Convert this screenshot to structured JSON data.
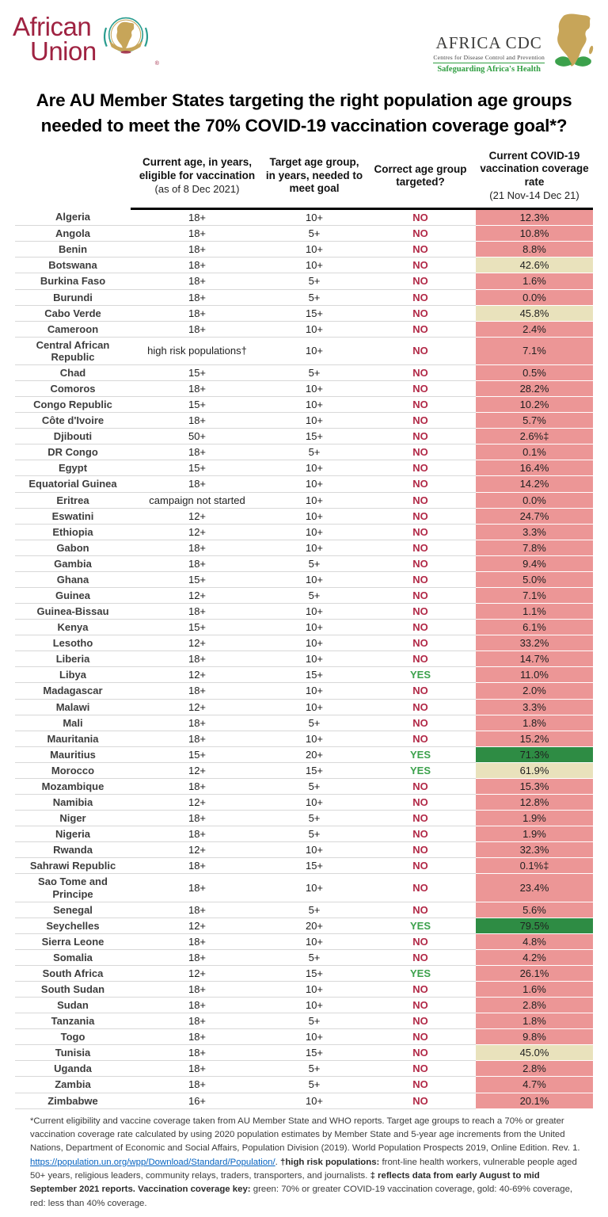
{
  "colors": {
    "band-red": "#ec9696",
    "band-gold": "#e9e2bc",
    "band-green": "#2e8c44",
    "no-red": "#b12846",
    "yes-green": "#3ca14c",
    "au-maroon": "#9f2241",
    "gold": "#c7a559",
    "cdc-green": "#2f9e41",
    "link-blue": "#0563c1"
  },
  "logos": {
    "au": {
      "line1": "African",
      "line2": "Union",
      "registered": "®"
    },
    "cdc": {
      "title": "AFRICA CDC",
      "subtitle": "Centres for Disease Control and Prevention",
      "tagline": "Safeguarding Africa's Health"
    }
  },
  "title": "Are AU Member States targeting the right population age groups needed to meet the 70% COVID-19 vaccination coverage goal*?",
  "table": {
    "headers": {
      "country": "",
      "eligible": {
        "title": "Current age, in years, eligible for vaccination",
        "sub": "(as of 8 Dec 2021)"
      },
      "target": {
        "title": "Target age group, in years, needed to meet goal",
        "sub": ""
      },
      "correct": {
        "title": "Correct age group targeted?",
        "sub": ""
      },
      "rate": {
        "title": "Current COVID-19 vaccination coverage rate",
        "sub": "(21 Nov-14 Dec 21)"
      }
    },
    "rows": [
      {
        "country": "Algeria",
        "eligible": "18+",
        "target": "10+",
        "correct": "NO",
        "rate": "12.3%",
        "band": "red"
      },
      {
        "country": "Angola",
        "eligible": "18+",
        "target": "5+",
        "correct": "NO",
        "rate": "10.8%",
        "band": "red"
      },
      {
        "country": "Benin",
        "eligible": "18+",
        "target": "10+",
        "correct": "NO",
        "rate": "8.8%",
        "band": "red"
      },
      {
        "country": "Botswana",
        "eligible": "18+",
        "target": "10+",
        "correct": "NO",
        "rate": "42.6%",
        "band": "gold"
      },
      {
        "country": "Burkina Faso",
        "eligible": "18+",
        "target": "5+",
        "correct": "NO",
        "rate": "1.6%",
        "band": "red"
      },
      {
        "country": "Burundi",
        "eligible": "18+",
        "target": "5+",
        "correct": "NO",
        "rate": "0.0%",
        "band": "red"
      },
      {
        "country": "Cabo Verde",
        "eligible": "18+",
        "target": "15+",
        "correct": "NO",
        "rate": "45.8%",
        "band": "gold"
      },
      {
        "country": "Cameroon",
        "eligible": "18+",
        "target": "10+",
        "correct": "NO",
        "rate": "2.4%",
        "band": "red"
      },
      {
        "country": "Central African Republic",
        "eligible": "high risk populations†",
        "target": "10+",
        "correct": "NO",
        "rate": "7.1%",
        "band": "red"
      },
      {
        "country": "Chad",
        "eligible": "15+",
        "target": "5+",
        "correct": "NO",
        "rate": "0.5%",
        "band": "red"
      },
      {
        "country": "Comoros",
        "eligible": "18+",
        "target": "10+",
        "correct": "NO",
        "rate": "28.2%",
        "band": "red"
      },
      {
        "country": "Congo Republic",
        "eligible": "15+",
        "target": "10+",
        "correct": "NO",
        "rate": "10.2%",
        "band": "red"
      },
      {
        "country": "Côte d'Ivoire",
        "eligible": "18+",
        "target": "10+",
        "correct": "NO",
        "rate": "5.7%",
        "band": "red"
      },
      {
        "country": "Djibouti",
        "eligible": "50+",
        "target": "15+",
        "correct": "NO",
        "rate": "2.6%‡",
        "band": "red"
      },
      {
        "country": "DR Congo",
        "eligible": "18+",
        "target": "5+",
        "correct": "NO",
        "rate": "0.1%",
        "band": "red"
      },
      {
        "country": "Egypt",
        "eligible": "15+",
        "target": "10+",
        "correct": "NO",
        "rate": "16.4%",
        "band": "red"
      },
      {
        "country": "Equatorial Guinea",
        "eligible": "18+",
        "target": "10+",
        "correct": "NO",
        "rate": "14.2%",
        "band": "red"
      },
      {
        "country": "Eritrea",
        "eligible": "campaign not started",
        "target": "10+",
        "correct": "NO",
        "rate": "0.0%",
        "band": "red"
      },
      {
        "country": "Eswatini",
        "eligible": "12+",
        "target": "10+",
        "correct": "NO",
        "rate": "24.7%",
        "band": "red"
      },
      {
        "country": "Ethiopia",
        "eligible": "12+",
        "target": "10+",
        "correct": "NO",
        "rate": "3.3%",
        "band": "red"
      },
      {
        "country": "Gabon",
        "eligible": "18+",
        "target": "10+",
        "correct": "NO",
        "rate": "7.8%",
        "band": "red"
      },
      {
        "country": "Gambia",
        "eligible": "18+",
        "target": "5+",
        "correct": "NO",
        "rate": "9.4%",
        "band": "red"
      },
      {
        "country": "Ghana",
        "eligible": "15+",
        "target": "10+",
        "correct": "NO",
        "rate": "5.0%",
        "band": "red"
      },
      {
        "country": "Guinea",
        "eligible": "12+",
        "target": "5+",
        "correct": "NO",
        "rate": "7.1%",
        "band": "red"
      },
      {
        "country": "Guinea-Bissau",
        "eligible": "18+",
        "target": "10+",
        "correct": "NO",
        "rate": "1.1%",
        "band": "red"
      },
      {
        "country": "Kenya",
        "eligible": "15+",
        "target": "10+",
        "correct": "NO",
        "rate": "6.1%",
        "band": "red"
      },
      {
        "country": "Lesotho",
        "eligible": "12+",
        "target": "10+",
        "correct": "NO",
        "rate": "33.2%",
        "band": "red"
      },
      {
        "country": "Liberia",
        "eligible": "18+",
        "target": "10+",
        "correct": "NO",
        "rate": "14.7%",
        "band": "red"
      },
      {
        "country": "Libya",
        "eligible": "12+",
        "target": "15+",
        "correct": "YES",
        "rate": "11.0%",
        "band": "red"
      },
      {
        "country": "Madagascar",
        "eligible": "18+",
        "target": "10+",
        "correct": "NO",
        "rate": "2.0%",
        "band": "red"
      },
      {
        "country": "Malawi",
        "eligible": "12+",
        "target": "10+",
        "correct": "NO",
        "rate": "3.3%",
        "band": "red"
      },
      {
        "country": "Mali",
        "eligible": "18+",
        "target": "5+",
        "correct": "NO",
        "rate": "1.8%",
        "band": "red"
      },
      {
        "country": "Mauritania",
        "eligible": "18+",
        "target": "10+",
        "correct": "NO",
        "rate": "15.2%",
        "band": "red"
      },
      {
        "country": "Mauritius",
        "eligible": "15+",
        "target": "20+",
        "correct": "YES",
        "rate": "71.3%",
        "band": "green"
      },
      {
        "country": "Morocco",
        "eligible": "12+",
        "target": "15+",
        "correct": "YES",
        "rate": "61.9%",
        "band": "gold"
      },
      {
        "country": "Mozambique",
        "eligible": "18+",
        "target": "5+",
        "correct": "NO",
        "rate": "15.3%",
        "band": "red"
      },
      {
        "country": "Namibia",
        "eligible": "12+",
        "target": "10+",
        "correct": "NO",
        "rate": "12.8%",
        "band": "red"
      },
      {
        "country": "Niger",
        "eligible": "18+",
        "target": "5+",
        "correct": "NO",
        "rate": "1.9%",
        "band": "red"
      },
      {
        "country": "Nigeria",
        "eligible": "18+",
        "target": "5+",
        "correct": "NO",
        "rate": "1.9%",
        "band": "red"
      },
      {
        "country": "Rwanda",
        "eligible": "12+",
        "target": "10+",
        "correct": "NO",
        "rate": "32.3%",
        "band": "red"
      },
      {
        "country": "Sahrawi Republic",
        "eligible": "18+",
        "target": "15+",
        "correct": "NO",
        "rate": "0.1%‡",
        "band": "red"
      },
      {
        "country": "Sao Tome and Principe",
        "eligible": "18+",
        "target": "10+",
        "correct": "NO",
        "rate": "23.4%",
        "band": "red"
      },
      {
        "country": "Senegal",
        "eligible": "18+",
        "target": "5+",
        "correct": "NO",
        "rate": "5.6%",
        "band": "red"
      },
      {
        "country": "Seychelles",
        "eligible": "12+",
        "target": "20+",
        "correct": "YES",
        "rate": "79.5%",
        "band": "green"
      },
      {
        "country": "Sierra Leone",
        "eligible": "18+",
        "target": "10+",
        "correct": "NO",
        "rate": "4.8%",
        "band": "red"
      },
      {
        "country": "Somalia",
        "eligible": "18+",
        "target": "5+",
        "correct": "NO",
        "rate": "4.2%",
        "band": "red"
      },
      {
        "country": "South Africa",
        "eligible": "12+",
        "target": "15+",
        "correct": "YES",
        "rate": "26.1%",
        "band": "red"
      },
      {
        "country": "South Sudan",
        "eligible": "18+",
        "target": "10+",
        "correct": "NO",
        "rate": "1.6%",
        "band": "red"
      },
      {
        "country": "Sudan",
        "eligible": "18+",
        "target": "10+",
        "correct": "NO",
        "rate": "2.8%",
        "band": "red"
      },
      {
        "country": "Tanzania",
        "eligible": "18+",
        "target": "5+",
        "correct": "NO",
        "rate": "1.8%",
        "band": "red"
      },
      {
        "country": "Togo",
        "eligible": "18+",
        "target": "10+",
        "correct": "NO",
        "rate": "9.8%",
        "band": "red"
      },
      {
        "country": "Tunisia",
        "eligible": "18+",
        "target": "15+",
        "correct": "NO",
        "rate": "45.0%",
        "band": "gold"
      },
      {
        "country": "Uganda",
        "eligible": "18+",
        "target": "5+",
        "correct": "NO",
        "rate": "2.8%",
        "band": "red"
      },
      {
        "country": "Zambia",
        "eligible": "18+",
        "target": "5+",
        "correct": "NO",
        "rate": "4.7%",
        "band": "red"
      },
      {
        "country": "Zimbabwe",
        "eligible": "16+",
        "target": "10+",
        "correct": "NO",
        "rate": "20.1%",
        "band": "red"
      }
    ]
  },
  "footnote": {
    "segments": [
      {
        "style": "normal",
        "text": "*Current eligibility and vaccine coverage taken from AU Member State and WHO reports. Target age groups to reach a 70% or greater vaccination coverage rate calculated by using 2020 population estimates by Member State and 5-year age increments from the United Nations, Department of Economic and Social Affairs, Population Division (2019). World Population Prospects 2019, Online Edition. Rev. 1. "
      },
      {
        "style": "link",
        "text": "https://population.un.org/wpp/Download/Standard/Population/"
      },
      {
        "style": "normal",
        "text": ". "
      },
      {
        "style": "bold",
        "text": "†high risk populations:"
      },
      {
        "style": "normal",
        "text": " front-line health workers, vulnerable people aged 50+ years, religious leaders, community relays, traders, transporters, and journalists. "
      },
      {
        "style": "bold",
        "text": "‡ reflects data from early August to mid September 2021 reports. "
      },
      {
        "style": "bold",
        "text": "Vaccination coverage key:"
      },
      {
        "style": "normal",
        "text": " green: 70% or greater COVID-19 vaccination coverage, gold: 40-69% coverage, red: less than 40% coverage."
      }
    ]
  }
}
